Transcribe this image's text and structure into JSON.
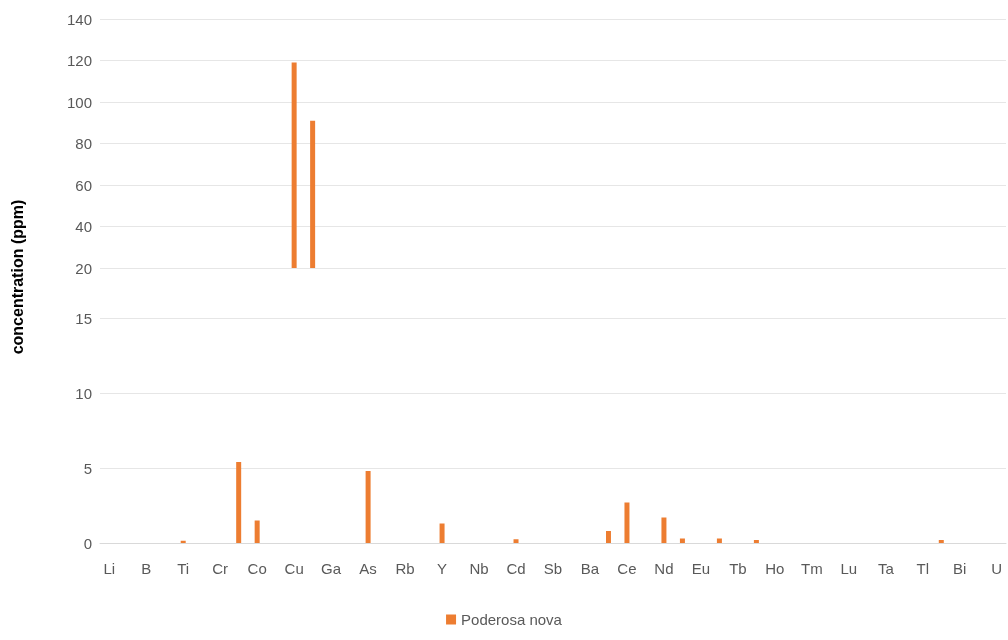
{
  "chart_data": [
    {
      "type": "bar",
      "categories": [
        null,
        null,
        null,
        null,
        null,
        null,
        null,
        null,
        null,
        null,
        null,
        null,
        null,
        null,
        null,
        null,
        null,
        null,
        null,
        null,
        null,
        null,
        null,
        null,
        null,
        null,
        null,
        null,
        null,
        null,
        null,
        null,
        null,
        null,
        null,
        null,
        null,
        null,
        null,
        null,
        null,
        null,
        null,
        null,
        null,
        null,
        null,
        null,
        null
      ],
      "series": [
        {
          "color": "#ed7d31",
          "values": [
            null,
            null,
            null,
            null,
            null,
            null,
            null,
            null,
            null,
            null,
            119,
            91,
            null,
            null,
            null,
            null,
            null,
            null,
            null,
            null,
            null,
            null,
            null,
            null,
            null,
            null,
            null,
            null,
            null,
            null,
            null,
            null,
            null,
            null,
            null,
            null,
            null,
            null,
            null,
            null,
            null,
            null,
            null,
            null,
            null,
            null,
            null,
            null,
            null
          ]
        }
      ],
      "ylim": [
        20,
        140
      ],
      "yticks": [
        20,
        40,
        60,
        80,
        100,
        120,
        140
      ],
      "grid": "y",
      "tick_labels": "y"
    },
    {
      "type": "bar",
      "ylabel": "concentration (ppm)",
      "categories": [
        "Li",
        null,
        "B",
        null,
        "Ti",
        null,
        "Cr",
        null,
        "Co",
        null,
        "Cu",
        null,
        "Ga",
        null,
        "As",
        null,
        "Rb",
        null,
        "Y",
        null,
        "Nb",
        null,
        "Cd",
        null,
        "Sb",
        null,
        "Ba",
        null,
        "Ce",
        null,
        "Nd",
        null,
        "Eu",
        null,
        "Tb",
        null,
        "Ho",
        null,
        "Tm",
        null,
        "Lu",
        null,
        "Ta",
        null,
        "Tl",
        null,
        "Bi",
        null,
        "U"
      ],
      "series": [
        {
          "name": "Poderosa nova",
          "color": "#ed7d31",
          "values": [
            0,
            0,
            0,
            0,
            0.15,
            0,
            0,
            5.4,
            1.5,
            0,
            null,
            null,
            0,
            0,
            4.8,
            0,
            0,
            0,
            1.3,
            0,
            0,
            0,
            0.25,
            0,
            0,
            0,
            0,
            0.8,
            2.7,
            0,
            1.7,
            0.3,
            0,
            0.3,
            0,
            0.2,
            0,
            0,
            0,
            0,
            0,
            0,
            0,
            0,
            0,
            0.2,
            0,
            0,
            0
          ]
        }
      ],
      "ylim": [
        0,
        15
      ],
      "yticks": [
        0,
        5,
        10,
        15
      ],
      "grid": "y",
      "legend": "bottom"
    }
  ]
}
